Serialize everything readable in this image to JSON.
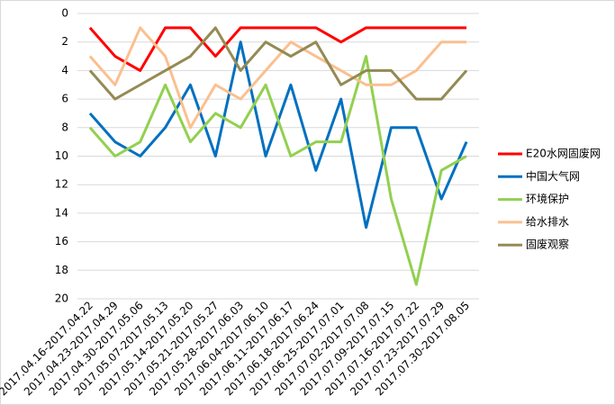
{
  "chart_data": {
    "type": "line",
    "categories": [
      "2017.04.16-2017.04.22",
      "2017.04.23-2017.04.29",
      "2017.04.30-2017.05.06",
      "2017.05.07-2017.05.13",
      "2017.05.14-2017.05.20",
      "2017.05.21-2017.05.27",
      "2017.05.28-2017.06.03",
      "2017.06.04-2017.06.10",
      "2017.06.11-2017.06.17",
      "2017.06.18-2017.06.24",
      "2017.06.25-2017.07.01",
      "2017.07.02-2017.07.08",
      "2017.07.09-2017.07.15",
      "2017.07.16-2017.07.22",
      "2017.07.23-2017.07.29",
      "2017.07.30-2017.08.05"
    ],
    "series": [
      {
        "name": "E20水网固废网",
        "color": "#ff0000",
        "values": [
          1,
          3,
          4,
          1,
          1,
          3,
          1,
          1,
          1,
          1,
          2,
          1,
          1,
          1,
          1,
          1
        ]
      },
      {
        "name": "中国大气网",
        "color": "#0070c0",
        "values": [
          7,
          9,
          10,
          8,
          5,
          10,
          2,
          10,
          5,
          11,
          6,
          15,
          8,
          8,
          13,
          9
        ]
      },
      {
        "name": "环境保护",
        "color": "#92d050",
        "values": [
          8,
          10,
          9,
          5,
          9,
          7,
          8,
          5,
          10,
          9,
          9,
          3,
          13,
          19,
          11,
          10
        ]
      },
      {
        "name": "给水排水",
        "color": "#fac090",
        "values": [
          3,
          5,
          1,
          3,
          8,
          5,
          6,
          4,
          2,
          3,
          4,
          5,
          5,
          4,
          2,
          2
        ]
      },
      {
        "name": "固废观察",
        "color": "#948a54",
        "values": [
          4,
          6,
          5,
          4,
          3,
          1,
          4,
          2,
          3,
          2,
          5,
          4,
          4,
          6,
          6,
          4
        ]
      }
    ],
    "ylim": [
      0,
      20
    ],
    "yticks": [
      0,
      2,
      4,
      6,
      8,
      10,
      12,
      14,
      16,
      18,
      20
    ],
    "y_inverted": true,
    "grid": true,
    "legend": "right"
  }
}
